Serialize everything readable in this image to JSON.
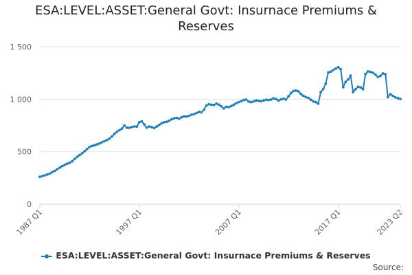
{
  "chart_data": {
    "type": "line",
    "title_lines": [
      "ESA:LEVEL:ASSET:General Govt: Insurnace Premiums &",
      "Reserves"
    ],
    "xlabel": "",
    "ylabel": "",
    "ylim": [
      0,
      1500
    ],
    "y_ticks": [
      0,
      500,
      1000,
      1500
    ],
    "y_tick_labels": [
      "0",
      "500",
      "1 000",
      "1 500"
    ],
    "x_tick_labels": [
      "1987 Q1",
      "1997 Q1",
      "2007 Q1",
      "2017 Q1",
      "2023 Q2"
    ],
    "x_tick_positions": [
      0,
      40,
      80,
      120,
      145
    ],
    "grid": "horizontal",
    "legend_position": "bottom",
    "series": [
      {
        "name": "ESA:LEVEL:ASSET:General Govt: Insurnace Premiums & Reserves",
        "color": "#1f7fb8",
        "values": [
          260,
          268,
          275,
          282,
          292,
          305,
          318,
          332,
          348,
          362,
          375,
          385,
          395,
          408,
          430,
          450,
          468,
          485,
          505,
          525,
          545,
          555,
          562,
          570,
          578,
          590,
          600,
          612,
          625,
          645,
          670,
          690,
          705,
          720,
          750,
          730,
          728,
          735,
          740,
          738,
          780,
          790,
          760,
          730,
          740,
          735,
          725,
          740,
          755,
          772,
          780,
          785,
          795,
          808,
          818,
          822,
          815,
          828,
          838,
          835,
          842,
          852,
          858,
          868,
          880,
          875,
          900,
          940,
          952,
          948,
          945,
          958,
          948,
          932,
          912,
          928,
          925,
          935,
          948,
          962,
          972,
          982,
          992,
          996,
          978,
          972,
          980,
          988,
          985,
          982,
          988,
          995,
          992,
          996,
          1008,
          1002,
          988,
          998,
          1006,
          996,
          1028,
          1058,
          1078,
          1082,
          1075,
          1050,
          1032,
          1020,
          1012,
          994,
          980,
          972,
          958,
          1068,
          1098,
          1148,
          1255,
          1262,
          1278,
          1292,
          1305,
          1285,
          1115,
          1165,
          1188,
          1225,
          1068,
          1095,
          1118,
          1112,
          1095,
          1240,
          1265,
          1260,
          1252,
          1235,
          1212,
          1222,
          1245,
          1238,
          1020,
          1048,
          1032,
          1018,
          1010,
          1003
        ]
      }
    ]
  },
  "legend": {
    "label": "ESA:LEVEL:ASSET:General Govt: Insurnace Premiums & Reserves"
  },
  "source_label": "Source:"
}
